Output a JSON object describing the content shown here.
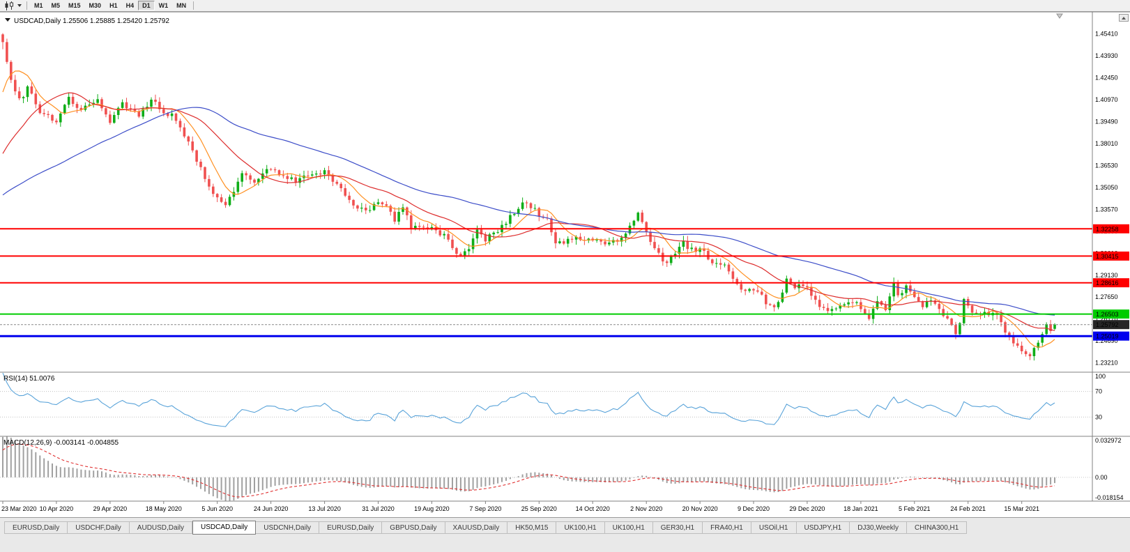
{
  "toolbar": {
    "timeframes": [
      "M1",
      "M5",
      "M15",
      "M30",
      "H1",
      "H4",
      "D1",
      "W1",
      "MN"
    ],
    "active_timeframe": "D1"
  },
  "chart": {
    "info_line": "USDCAD,Daily 1.25506 1.25885 1.25420 1.25792",
    "symbol": "USDCAD",
    "period": "Daily"
  },
  "colors": {
    "bull": "#0fae18",
    "bear": "#f05050",
    "ma_fast": "#ff9021",
    "ma_mid": "#dd2c2c",
    "ma_slow": "#3b4cc8",
    "rsi_line": "#59a3d9",
    "macd_hist": "#a0a0a0",
    "macd_signal": "#e03030",
    "current_label_bg": "#262626"
  },
  "chart_data": {
    "type": "candlestick",
    "title": "USDCAD,Daily",
    "current_bar": {
      "open": 1.25506,
      "high": 1.25885,
      "low": 1.2542,
      "close": 1.25792
    },
    "bars": 256,
    "noise": 0.0018,
    "price_axis": {
      "min": 1.2258,
      "max": 1.469,
      "decimals": 5,
      "ticks": [
        1.2321,
        1.2469,
        1.2617,
        1.2765,
        1.2913,
        1.3061,
        1.3209,
        1.3357,
        1.3505,
        1.3653,
        1.3801,
        1.3949,
        1.4097,
        1.4245,
        1.4393,
        1.4541
      ]
    },
    "date_labels": [
      "23 Mar 2020",
      "10 Apr 2020",
      "29 Apr 2020",
      "18 May 2020",
      "5 Jun 2020",
      "24 Jun 2020",
      "13 Jul 2020",
      "31 Jul 2020",
      "19 Aug 2020",
      "7 Sep 2020",
      "25 Sep 2020",
      "14 Oct 2020",
      "2 Nov 2020",
      "20 Nov 2020",
      "9 Dec 2020",
      "29 Dec 2020",
      "18 Jan 2021",
      "5 Feb 2021",
      "24 Feb 2021",
      "15 Mar 2021"
    ],
    "date_label_step": 13,
    "levels": [
      {
        "value": 1.32258,
        "label": "1.32258",
        "color": "#ff0000",
        "width": 2
      },
      {
        "value": 1.30415,
        "label": "1.30415",
        "color": "#ff0000",
        "width": 2
      },
      {
        "value": 1.28616,
        "label": "1.28616",
        "color": "#ff0000",
        "width": 2
      },
      {
        "value": 1.26503,
        "label": "1.26503",
        "color": "#00cc00",
        "width": 2
      },
      {
        "value": 1.25019,
        "label": "1.25019",
        "color": "#0000ee",
        "width": 3
      }
    ],
    "current_price": {
      "value": 1.25792,
      "label": "1.25792"
    },
    "moving_averages": [
      {
        "period": 8,
        "color_key": "ma_fast"
      },
      {
        "period": 21,
        "color_key": "ma_mid"
      },
      {
        "period": 55,
        "color_key": "ma_slow"
      }
    ],
    "prehistory_anchors": [
      [
        -60,
        1.3242
      ],
      [
        -40,
        1.3262
      ],
      [
        -25,
        1.3318
      ],
      [
        -15,
        1.3418
      ],
      [
        -8,
        1.3648
      ],
      [
        -4,
        1.4098
      ],
      [
        -1,
        1.4438
      ]
    ],
    "close_anchors": [
      [
        0,
        1.4486
      ],
      [
        2,
        1.424
      ],
      [
        4,
        1.409
      ],
      [
        6,
        1.4175
      ],
      [
        9,
        1.402
      ],
      [
        13,
        1.3958
      ],
      [
        16,
        1.4105
      ],
      [
        19,
        1.403
      ],
      [
        23,
        1.4085
      ],
      [
        26,
        1.3952
      ],
      [
        29,
        1.407
      ],
      [
        33,
        1.3985
      ],
      [
        36,
        1.41
      ],
      [
        39,
        1.4005
      ],
      [
        41,
        1.399
      ],
      [
        43,
        1.3902
      ],
      [
        46,
        1.3758
      ],
      [
        49,
        1.3558
      ],
      [
        52,
        1.3428
      ],
      [
        54,
        1.3388
      ],
      [
        56,
        1.3472
      ],
      [
        58,
        1.3598
      ],
      [
        61,
        1.3542
      ],
      [
        65,
        1.3638
      ],
      [
        68,
        1.3578
      ],
      [
        71,
        1.3548
      ],
      [
        74,
        1.3588
      ],
      [
        78,
        1.3612
      ],
      [
        81,
        1.3528
      ],
      [
        84,
        1.3418
      ],
      [
        88,
        1.3342
      ],
      [
        91,
        1.3412
      ],
      [
        93,
        1.3388
      ],
      [
        95,
        1.3268
      ],
      [
        97,
        1.3386
      ],
      [
        99,
        1.3222
      ],
      [
        102,
        1.3242
      ],
      [
        104,
        1.3222
      ],
      [
        107,
        1.3182
      ],
      [
        109,
        1.3092
      ],
      [
        111,
        1.3042
      ],
      [
        113,
        1.3098
      ],
      [
        115,
        1.3222
      ],
      [
        117,
        1.3158
      ],
      [
        120,
        1.3208
      ],
      [
        123,
        1.3308
      ],
      [
        126,
        1.3386
      ],
      [
        128,
        1.3378
      ],
      [
        130,
        1.3318
      ],
      [
        132,
        1.3292
      ],
      [
        134,
        1.3122
      ],
      [
        137,
        1.3142
      ],
      [
        139,
        1.3188
      ],
      [
        141,
        1.3142
      ],
      [
        143,
        1.3148
      ],
      [
        146,
        1.3132
      ],
      [
        149,
        1.3142
      ],
      [
        151,
        1.3208
      ],
      [
        154,
        1.3328
      ],
      [
        156,
        1.3208
      ],
      [
        158,
        1.3098
      ],
      [
        160,
        1.3018
      ],
      [
        161,
        1.2992
      ],
      [
        163,
        1.3072
      ],
      [
        165,
        1.3128
      ],
      [
        167,
        1.3082
      ],
      [
        169,
        1.3092
      ],
      [
        172,
        1.2998
      ],
      [
        175,
        1.2995
      ],
      [
        176,
        1.293
      ],
      [
        178,
        1.2857
      ],
      [
        180,
        1.2807
      ],
      [
        182,
        1.2812
      ],
      [
        184,
        1.2765
      ],
      [
        186,
        1.27
      ],
      [
        188,
        1.2717
      ],
      [
        190,
        1.2872
      ],
      [
        192,
        1.2837
      ],
      [
        195,
        1.2828
      ],
      [
        197,
        1.2732
      ],
      [
        199,
        1.268
      ],
      [
        200,
        1.266
      ],
      [
        202,
        1.2698
      ],
      [
        204,
        1.272
      ],
      [
        207,
        1.2731
      ],
      [
        210,
        1.2634
      ],
      [
        212,
        1.2735
      ],
      [
        214,
        1.2693
      ],
      [
        216,
        1.2853
      ],
      [
        217,
        1.2776
      ],
      [
        219,
        1.2827
      ],
      [
        221,
        1.2763
      ],
      [
        223,
        1.2712
      ],
      [
        225,
        1.2739
      ],
      [
        227,
        1.2691
      ],
      [
        229,
        1.2614
      ],
      [
        231,
        1.2513
      ],
      [
        232,
        1.2596
      ],
      [
        233,
        1.2737
      ],
      [
        235,
        1.2643
      ],
      [
        237,
        1.266
      ],
      [
        239,
        1.2655
      ],
      [
        241,
        1.2646
      ],
      [
        243,
        1.253
      ],
      [
        245,
        1.2459
      ],
      [
        247,
        1.2403
      ],
      [
        249,
        1.2368
      ],
      [
        250,
        1.242
      ],
      [
        251,
        1.2468
      ],
      [
        252,
        1.2502
      ],
      [
        253,
        1.2572
      ],
      [
        254,
        1.2542
      ],
      [
        255,
        1.25792
      ]
    ],
    "indicators": {
      "rsi": {
        "name": "RSI",
        "period": 14,
        "value": 51.0076,
        "label": "RSI(14) 51.0076",
        "scale_labels": [
          "100",
          "70",
          "30"
        ],
        "guides": [
          70,
          30
        ]
      },
      "macd": {
        "name": "MACD",
        "params": "12,26,9",
        "main": -0.003141,
        "signal": -0.004855,
        "label": "MACD(12,26,9) -0.003141 -0.004855",
        "scale_labels": [
          "0.032972",
          "0.00",
          "-0.018154"
        ]
      }
    }
  },
  "tabs": {
    "active_index": 3,
    "items": [
      "EURUSD,Daily",
      "USDCHF,Daily",
      "AUDUSD,Daily",
      "USDCAD,Daily",
      "USDCNH,Daily",
      "EURUSD,Daily",
      "GBPUSD,Daily",
      "XAUUSD,Daily",
      "HK50,M15",
      "UK100,H1",
      "UK100,H1",
      "GER30,H1",
      "FRA40,H1",
      "USOil,H1",
      "USDJPY,H1",
      "DJ30,Weekly",
      "CHINA300,H1"
    ]
  }
}
